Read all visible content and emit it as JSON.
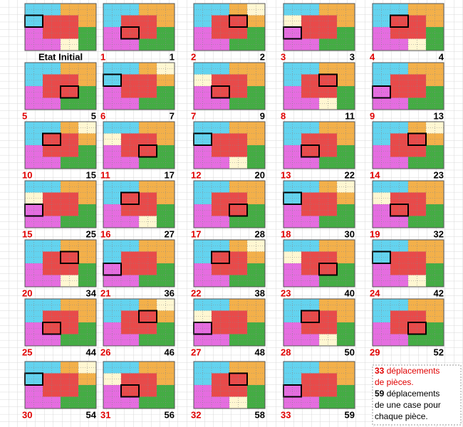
{
  "initial_label": "Etat Initial",
  "steps": [
    {
      "move": 1,
      "total": 1
    },
    {
      "move": 2,
      "total": 2
    },
    {
      "move": 3,
      "total": 3
    },
    {
      "move": 4,
      "total": 4
    },
    {
      "move": 5,
      "total": 5
    },
    {
      "move": 6,
      "total": 7
    },
    {
      "move": 7,
      "total": 9
    },
    {
      "move": 8,
      "total": 11
    },
    {
      "move": 9,
      "total": 13
    },
    {
      "move": 10,
      "total": 15
    },
    {
      "move": 11,
      "total": 17
    },
    {
      "move": 12,
      "total": 20
    },
    {
      "move": 13,
      "total": 22
    },
    {
      "move": 14,
      "total": 23
    },
    {
      "move": 15,
      "total": 25
    },
    {
      "move": 16,
      "total": 27
    },
    {
      "move": 17,
      "total": 28
    },
    {
      "move": 18,
      "total": 30
    },
    {
      "move": 19,
      "total": 32
    },
    {
      "move": 20,
      "total": 34
    },
    {
      "move": 21,
      "total": 36
    },
    {
      "move": 22,
      "total": 38
    },
    {
      "move": 23,
      "total": 40
    },
    {
      "move": 24,
      "total": 42
    },
    {
      "move": 25,
      "total": 44
    },
    {
      "move": 26,
      "total": 46
    },
    {
      "move": 27,
      "total": 48
    },
    {
      "move": 28,
      "total": 50
    },
    {
      "move": 29,
      "total": 52
    },
    {
      "move": 30,
      "total": 54
    },
    {
      "move": 31,
      "total": 56
    },
    {
      "move": 32,
      "total": 58
    },
    {
      "move": 33,
      "total": 59
    }
  ],
  "notes": [
    {
      "count": "33",
      "lines": [
        "déplacements",
        "de pièces."
      ]
    },
    {
      "count": "59",
      "lines": [
        "déplacements",
        "de une case pour",
        "chaque pièce."
      ]
    }
  ]
}
